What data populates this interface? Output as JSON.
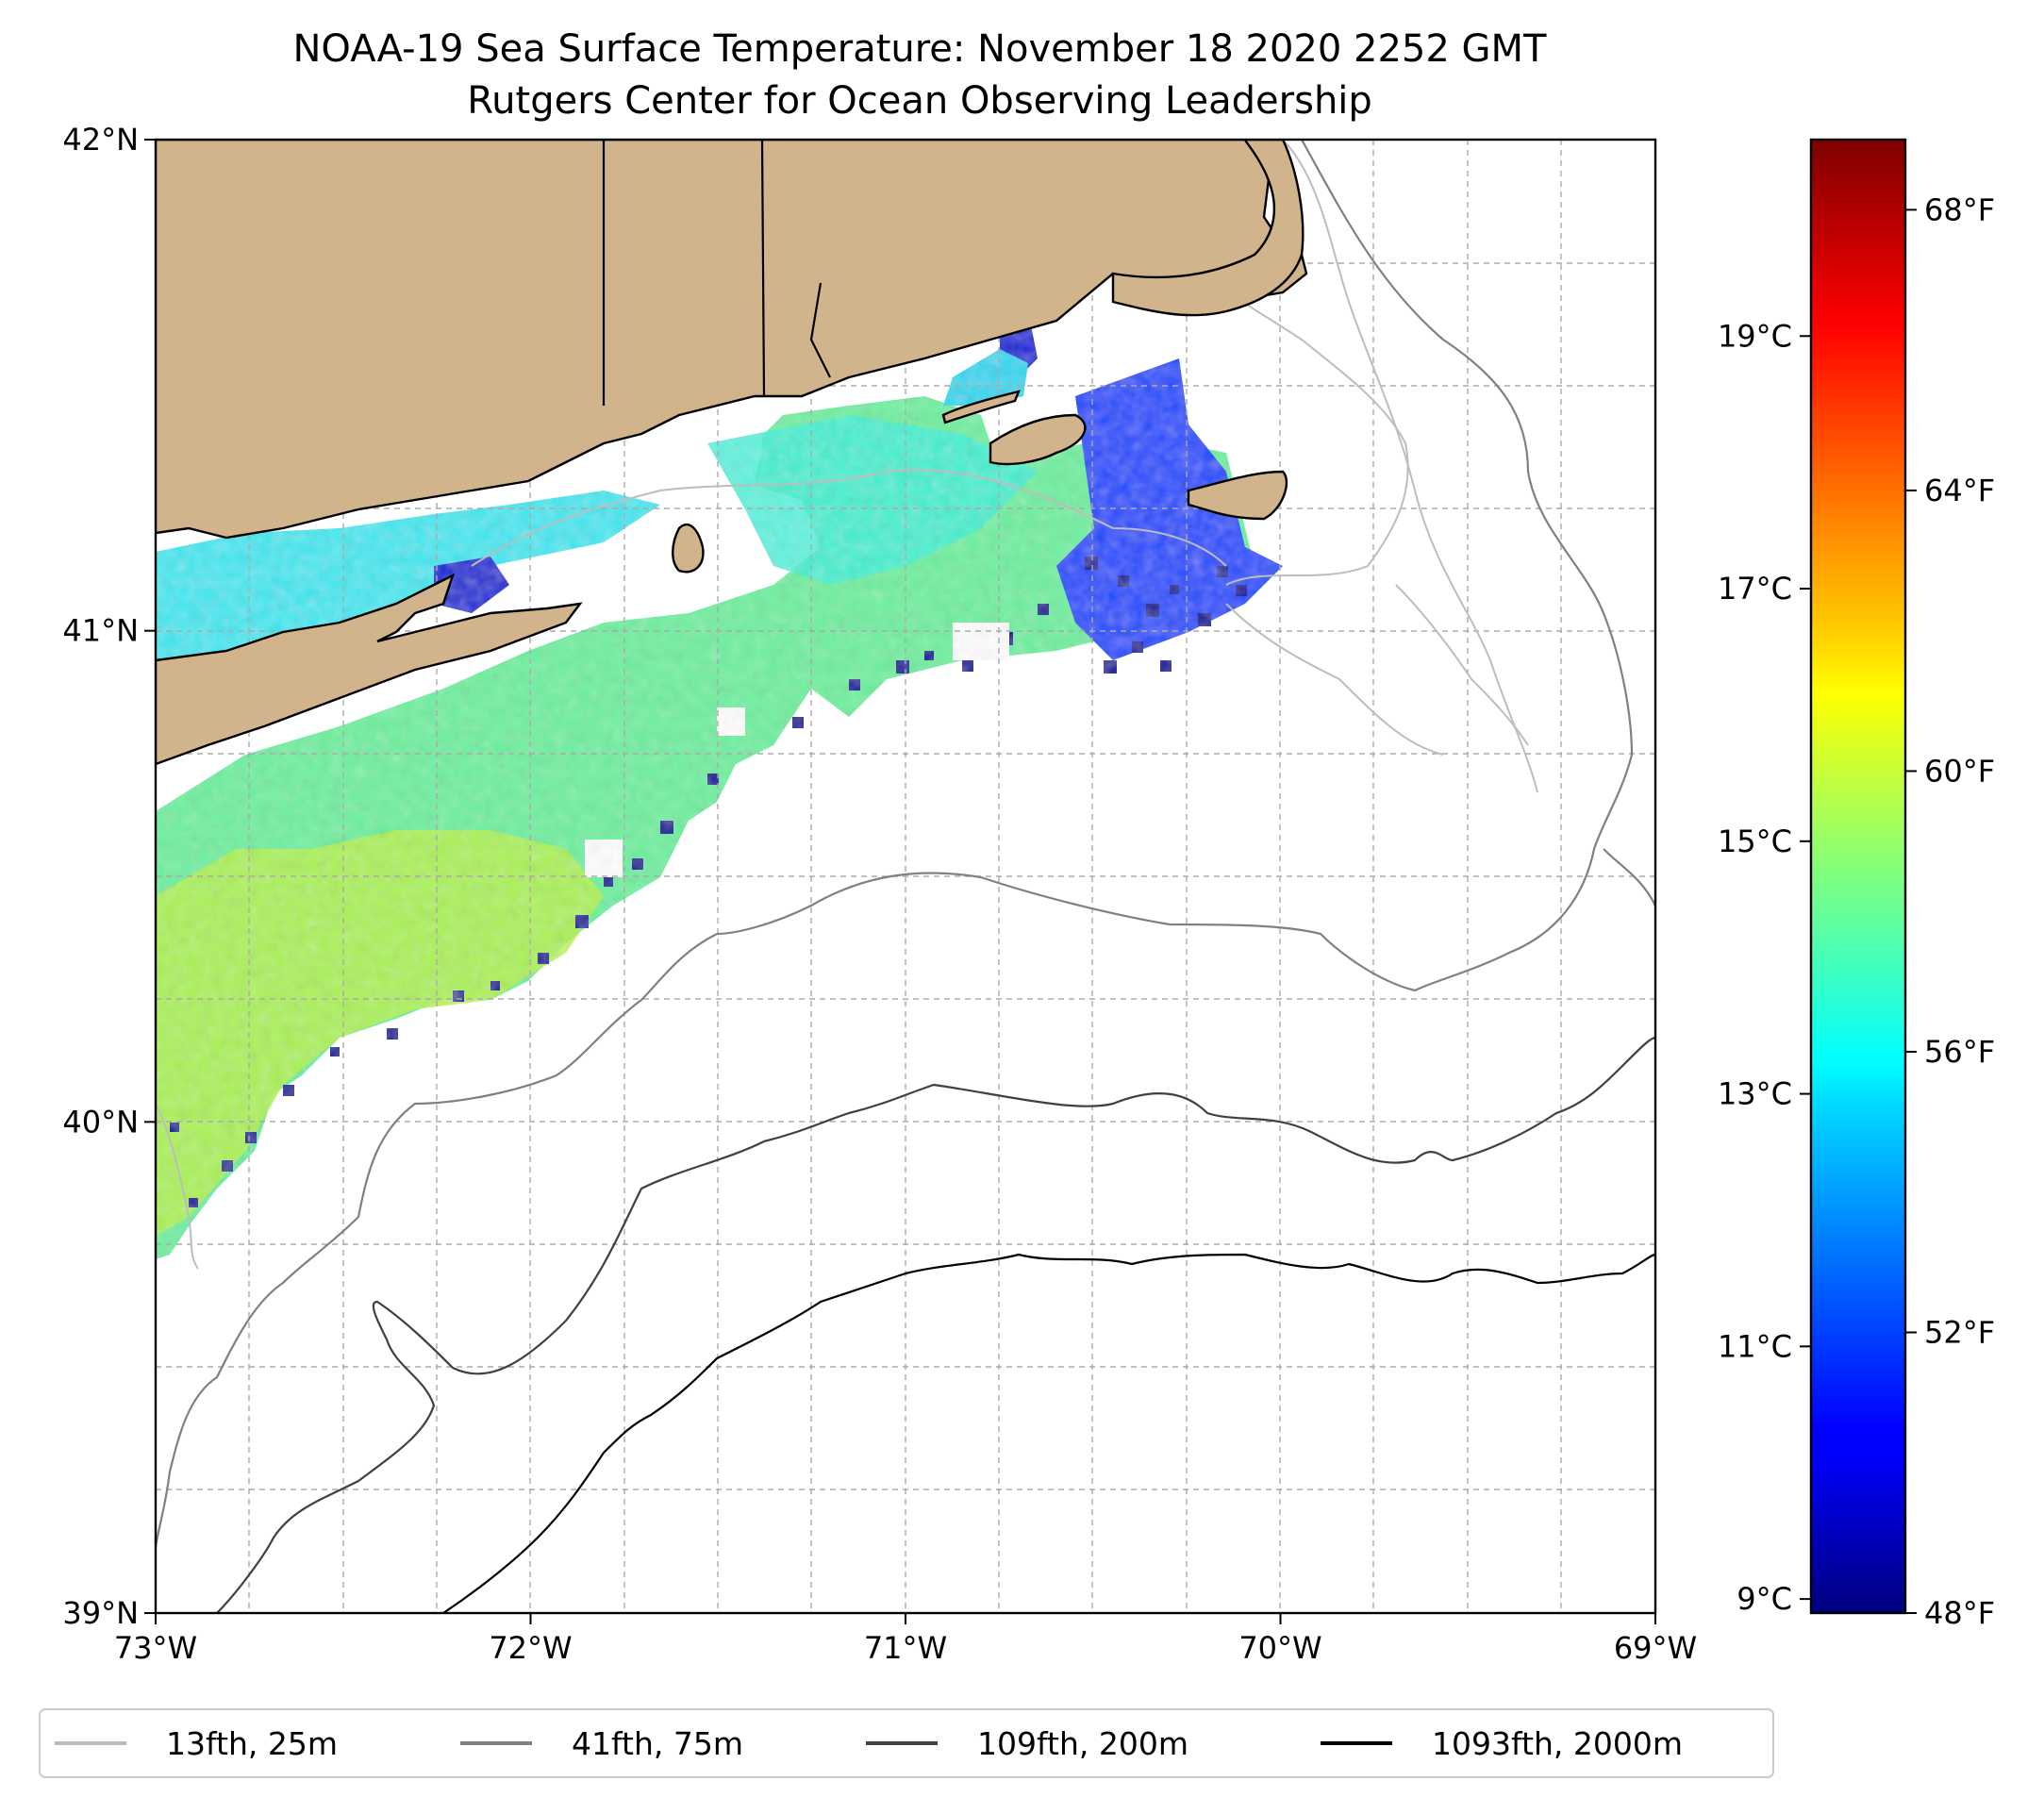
{
  "header": {
    "title": "NOAA-19 Sea Surface Temperature: November 18 2020 2252 GMT",
    "subtitle": "Rutgers Center for Ocean Observing Leadership"
  },
  "map": {
    "extent": {
      "lon": [
        -73,
        -69
      ],
      "lat": [
        39,
        42
      ]
    },
    "lon_ticks": [
      {
        "value": -73,
        "label": "73°W"
      },
      {
        "value": -72,
        "label": "72°W"
      },
      {
        "value": -71,
        "label": "71°W"
      },
      {
        "value": -70,
        "label": "70°W"
      },
      {
        "value": -69,
        "label": "69°W"
      }
    ],
    "lat_ticks": [
      {
        "value": 42,
        "label": "42°N"
      },
      {
        "value": 41,
        "label": "41°N"
      },
      {
        "value": 40,
        "label": "40°N"
      },
      {
        "value": 39,
        "label": "39°N"
      }
    ],
    "grid": true,
    "land_color": "#d2b48c",
    "colormap": "jet"
  },
  "colorbar": {
    "range_f": [
      48,
      69
    ],
    "fahrenheit_ticks": [
      {
        "value": 68,
        "label": "68°F"
      },
      {
        "value": 64,
        "label": "64°F"
      },
      {
        "value": 60,
        "label": "60°F"
      },
      {
        "value": 56,
        "label": "56°F"
      },
      {
        "value": 52,
        "label": "52°F"
      },
      {
        "value": 48,
        "label": "48°F"
      }
    ],
    "celsius_ticks": [
      {
        "value": 19,
        "label": "19°C"
      },
      {
        "value": 17,
        "label": "17°C"
      },
      {
        "value": 15,
        "label": "15°C"
      },
      {
        "value": 13,
        "label": "13°C"
      },
      {
        "value": 11,
        "label": "11°C"
      },
      {
        "value": 9,
        "label": "9°C"
      }
    ]
  },
  "legend": {
    "placement": "bottom",
    "items": [
      {
        "label": "13fth, 25m",
        "color": "#bdbdbd"
      },
      {
        "label": "41fth, 75m",
        "color": "#808080"
      },
      {
        "label": "109fth, 200m",
        "color": "#404040"
      },
      {
        "label": "1093fth, 2000m",
        "color": "#000000"
      }
    ]
  }
}
